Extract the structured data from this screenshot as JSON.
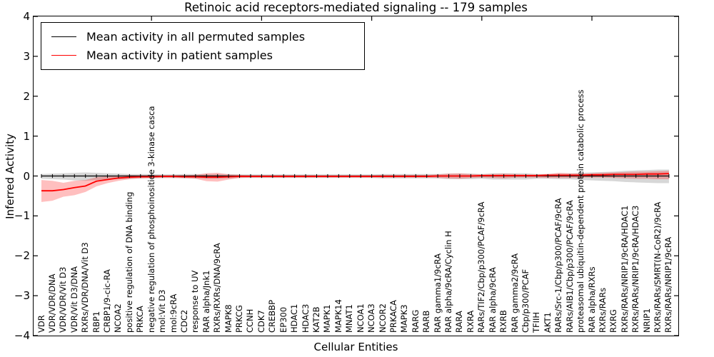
{
  "chart_data": {
    "type": "line",
    "title": "Retinoic acid receptors-mediated signaling -- 179 samples",
    "xlabel": "Cellular Entities",
    "ylabel": "Inferred Activity",
    "ylim": [
      -4,
      4
    ],
    "yticks": [
      4,
      3,
      2,
      1,
      0,
      -1,
      -2,
      -3,
      -4
    ],
    "layout": {
      "grid": false,
      "legend_position": "upper left",
      "top_tick_indices": [
        10,
        20,
        30,
        40,
        50
      ],
      "x_labels_rotation_deg": 90
    },
    "legend": {
      "entries": [
        {
          "label": "Mean activity in all permuted samples",
          "color": "#000000"
        },
        {
          "label": "Mean activity in patient samples",
          "color": "#ff0000"
        }
      ]
    },
    "categories": [
      "VDR",
      "VDR/VDR/DNA",
      "VDR/VDR/Vit D3",
      "VDR/Vit D3/DNA",
      "RXRs/VDR/DNA/Vit D3",
      "RBP1",
      "CRBP1/9-cic-RA",
      "NCOA2",
      "positive regulation of DNA binding",
      "PRKCA",
      "negative regulation of phosphoinositide 3-kinase casca",
      "mol:Vit D3",
      "mol:9cRA",
      "CDC2",
      "response to UV",
      "RAR alpha/Jnk1",
      "RXRs/RXRs/DNA/9cRA",
      "MAPK8",
      "PRKCG",
      "CCNH",
      "CDK7",
      "CREBBP",
      "EP300",
      "HDAC1",
      "HDAC3",
      "KAT2B",
      "MAPK1",
      "MAPK14",
      "MNAT1",
      "NCOA1",
      "NCOA3",
      "NCOR2",
      "PRKACA",
      "MAPK3",
      "RARG",
      "RARB",
      "RAR gamma1/9cRA",
      "RAR alpha/9cRA/Cyclin H",
      "RARA",
      "RXRA",
      "RARs/TIF2/Cbp/p300/PCAF/9cRA",
      "RAR alpha/9cRA",
      "RXRB",
      "RAR gamma2/9cRA",
      "Cbp/p300/PCAF",
      "TFIIH",
      "AKT1",
      "RARs/Src-1/Cbp/p300/PCAF/9cRA",
      "RARs/AIB1/Cbp/p300/PCAF/9cRA",
      "proteasomal ubiquitin-dependent protein catabolic process",
      "RAR alpha/RXRs",
      "RXRs/RARs",
      "RXRG",
      "RXRs/RARs/NRIP1/9cRA/HDAC1",
      "RXRs/RARs/NRIP1/9cRA/HDAC3",
      "NRIP1",
      "RXRs/RARs/SMRT(N-CoR2)/9cRA",
      "RXRs/RARs/NRIP1/9cRA"
    ],
    "series": [
      {
        "name": "Mean activity in all permuted samples",
        "color": "#000000",
        "band_color": "rgba(110,110,110,0.28)",
        "values": [
          0,
          0,
          0,
          0,
          0,
          0,
          0,
          0,
          0,
          0,
          0,
          0,
          0,
          0,
          0,
          0,
          0,
          0,
          0,
          0,
          0,
          0,
          0,
          0,
          0,
          0,
          0,
          0,
          0,
          0,
          0,
          0,
          0,
          0,
          0,
          0,
          0,
          0,
          0,
          0,
          0,
          0,
          0,
          0,
          0,
          0,
          0,
          0,
          0,
          0,
          0,
          0,
          0,
          0,
          0,
          0,
          0,
          0
        ],
        "band_hi": [
          0.05,
          0.06,
          0.07,
          0.08,
          0.09,
          0.08,
          0.07,
          0.06,
          0.05,
          0.05,
          0.05,
          0.04,
          0.04,
          0.05,
          0.05,
          0.05,
          0.05,
          0.05,
          0.04,
          0.04,
          0.04,
          0.04,
          0.04,
          0.04,
          0.04,
          0.04,
          0.04,
          0.04,
          0.04,
          0.04,
          0.04,
          0.05,
          0.05,
          0.05,
          0.05,
          0.05,
          0.05,
          0.06,
          0.06,
          0.06,
          0.05,
          0.07,
          0.07,
          0.07,
          0.07,
          0.05,
          0.05,
          0.06,
          0.06,
          0.08,
          0.09,
          0.1,
          0.11,
          0.13,
          0.14,
          0.15,
          0.16,
          0.16
        ],
        "band_lo": [
          -0.07,
          -0.08,
          -0.09,
          -0.11,
          -0.12,
          -0.1,
          -0.09,
          -0.08,
          -0.07,
          -0.06,
          -0.06,
          -0.05,
          -0.05,
          -0.06,
          -0.06,
          -0.07,
          -0.07,
          -0.06,
          -0.05,
          -0.05,
          -0.05,
          -0.05,
          -0.05,
          -0.05,
          -0.05,
          -0.05,
          -0.05,
          -0.05,
          -0.05,
          -0.05,
          -0.05,
          -0.06,
          -0.06,
          -0.06,
          -0.06,
          -0.06,
          -0.06,
          -0.08,
          -0.08,
          -0.08,
          -0.07,
          -0.09,
          -0.09,
          -0.09,
          -0.09,
          -0.07,
          -0.07,
          -0.08,
          -0.08,
          -0.1,
          -0.11,
          -0.12,
          -0.13,
          -0.15,
          -0.16,
          -0.17,
          -0.18,
          -0.18
        ]
      },
      {
        "name": "Mean activity in patient samples",
        "color": "#ff0000",
        "band_color": "rgba(255,0,0,0.25)",
        "values": [
          -0.37,
          -0.37,
          -0.34,
          -0.29,
          -0.25,
          -0.13,
          -0.09,
          -0.05,
          -0.03,
          -0.02,
          -0.02,
          -0.01,
          -0.01,
          -0.02,
          -0.02,
          -0.03,
          -0.03,
          -0.02,
          -0.01,
          -0.01,
          -0.01,
          -0.01,
          -0.01,
          -0.01,
          -0.01,
          -0.01,
          -0.01,
          -0.01,
          -0.01,
          -0.01,
          -0.01,
          -0.01,
          -0.01,
          -0.01,
          -0.01,
          -0.01,
          0,
          0,
          0,
          0,
          0.01,
          0.01,
          0.01,
          0.01,
          0.01,
          0.01,
          0.02,
          0.02,
          0.02,
          0.02,
          0.03,
          0.03,
          0.04,
          0.04,
          0.04,
          0.05,
          0.05,
          0.06
        ],
        "band_hi": [
          -0.1,
          -0.12,
          -0.17,
          -0.12,
          -0.1,
          -0.03,
          -0.01,
          0.01,
          0.02,
          0.02,
          0.02,
          0.02,
          0.02,
          0.02,
          0.03,
          0.07,
          0.08,
          0.04,
          0.03,
          0.02,
          0.02,
          0.02,
          0.02,
          0.02,
          0.02,
          0.02,
          0.02,
          0.02,
          0.02,
          0.02,
          0.02,
          0.03,
          0.03,
          0.03,
          0.03,
          0.03,
          0.04,
          0.06,
          0.07,
          0.05,
          0.04,
          0.05,
          0.06,
          0.05,
          0.04,
          0.04,
          0.05,
          0.08,
          0.07,
          0.06,
          0.07,
          0.08,
          0.09,
          0.1,
          0.11,
          0.11,
          0.12,
          0.13
        ],
        "band_lo": [
          -0.65,
          -0.62,
          -0.52,
          -0.48,
          -0.4,
          -0.26,
          -0.18,
          -0.12,
          -0.08,
          -0.06,
          -0.05,
          -0.05,
          -0.05,
          -0.05,
          -0.07,
          -0.13,
          -0.14,
          -0.09,
          -0.05,
          -0.04,
          -0.04,
          -0.04,
          -0.04,
          -0.04,
          -0.04,
          -0.04,
          -0.04,
          -0.04,
          -0.04,
          -0.04,
          -0.04,
          -0.04,
          -0.04,
          -0.04,
          -0.04,
          -0.04,
          -0.05,
          -0.06,
          -0.07,
          -0.05,
          -0.04,
          -0.05,
          -0.06,
          -0.04,
          -0.04,
          -0.04,
          -0.05,
          -0.05,
          -0.05,
          -0.04,
          -0.04,
          -0.04,
          -0.05,
          -0.06,
          -0.07,
          -0.07,
          -0.08,
          -0.08
        ]
      }
    ]
  }
}
